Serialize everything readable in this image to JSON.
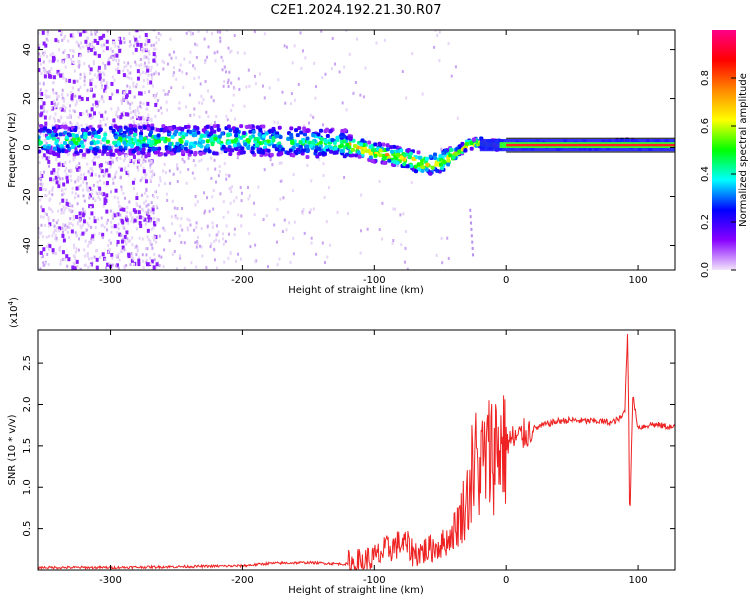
{
  "title": "C2E1.2024.192.21.30.R07",
  "chart_data": [
    {
      "type": "heatmap",
      "xlabel": "Height of straight line (km)",
      "ylabel": "Frequency (Hz)",
      "xlim": [
        -355,
        128
      ],
      "ylim": [
        -50,
        48
      ],
      "xticks": [
        -300,
        -200,
        -100,
        0,
        100
      ],
      "yticks": [
        -40,
        -20,
        0,
        20,
        40
      ],
      "grid": false,
      "colorbar": {
        "label": "Normalized spectral amplitude",
        "range": [
          0,
          1
        ],
        "ticks": [
          "0.0",
          "0.2",
          "0.4",
          "0.6",
          "0.8"
        ],
        "colors": [
          "#f2e6fa",
          "#8800ff",
          "#0000ff",
          "#00ffff",
          "#00ff00",
          "#ffff00",
          "#ff8800",
          "#ff0000",
          "#ff0088"
        ]
      },
      "ridge": {
        "x": [
          -350,
          -300,
          -250,
          -200,
          -150,
          -120,
          -100,
          -80,
          -60,
          -50,
          -40,
          -30,
          -20,
          -10,
          0,
          20,
          50,
          80,
          90,
          100,
          128
        ],
        "frequency": [
          3,
          3,
          3,
          3,
          2,
          1,
          -2,
          -4,
          -7,
          -6,
          -3,
          1,
          2,
          1,
          1,
          1,
          1,
          1,
          2,
          1,
          1
        ]
      }
    },
    {
      "type": "line",
      "xlabel": "Height of straight line (km)",
      "ylabel": "SNR (10 * v/v)",
      "y_scale_note": "(x10",
      "y_scale_exp": "4",
      "y_scale_close": ")",
      "xlim": [
        -355,
        128
      ],
      "ylim": [
        0,
        2.9
      ],
      "xticks": [
        -300,
        -200,
        -100,
        0,
        100
      ],
      "yticks": [
        "0.5",
        "1.0",
        "1.5",
        "2.0",
        "2.5"
      ],
      "grid": false,
      "color": "#ee2222",
      "series": [
        {
          "x": [
            -355,
            -300,
            -250,
            -200,
            -180,
            -150,
            -120,
            -110,
            -100,
            -90,
            -80,
            -75,
            -70,
            -60,
            -50,
            -45,
            -40,
            -35,
            -30,
            -25,
            -20,
            -15,
            -10,
            -5,
            0,
            10,
            20,
            30,
            40,
            50,
            60,
            70,
            80,
            85,
            88,
            90,
            92,
            94,
            96,
            100,
            110,
            120,
            128
          ],
          "y": [
            0.03,
            0.03,
            0.04,
            0.05,
            0.08,
            0.09,
            0.07,
            0.09,
            0.14,
            0.25,
            0.32,
            0.3,
            0.2,
            0.24,
            0.3,
            0.35,
            0.45,
            0.62,
            0.85,
            1.05,
            1.25,
            1.35,
            1.45,
            1.52,
            1.55,
            1.6,
            1.7,
            1.76,
            1.8,
            1.81,
            1.8,
            1.8,
            1.78,
            1.82,
            1.85,
            1.95,
            2.85,
            0.8,
            2.1,
            1.72,
            1.76,
            1.74,
            1.72
          ]
        }
      ]
    }
  ]
}
